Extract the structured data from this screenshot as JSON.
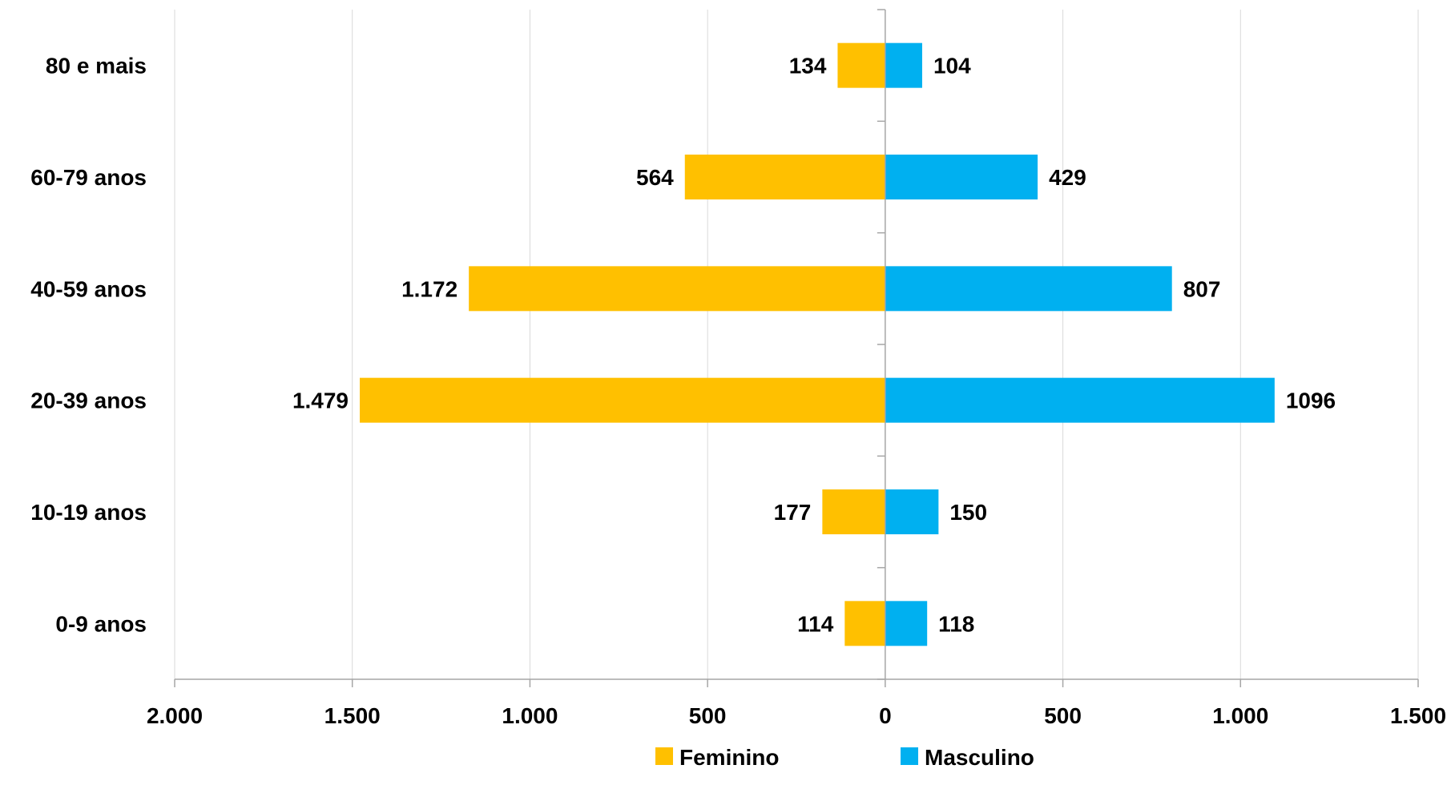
{
  "chart_data": {
    "type": "bar",
    "orientation": "horizontal",
    "layout": "population-pyramid",
    "title": "",
    "xlabel": "",
    "ylabel": "",
    "categories": [
      "0-9 anos",
      "10-19 anos",
      "20-39 anos",
      "40-59 anos",
      "60-79 anos",
      "80 e mais"
    ],
    "series": [
      {
        "name": "Feminino",
        "direction": "left",
        "color": "#FFC000",
        "values": [
          114,
          177,
          1479,
          1172,
          564,
          134
        ],
        "labels": [
          "114",
          "177",
          "1.479",
          "1.172",
          "564",
          "134"
        ]
      },
      {
        "name": "Masculino",
        "direction": "right",
        "color": "#00B0F0",
        "values": [
          118,
          150,
          1096,
          807,
          429,
          104
        ],
        "labels": [
          "118",
          "150",
          "1096",
          "807",
          "429",
          "104"
        ]
      }
    ],
    "xlim": [
      -2000,
      1500
    ],
    "x_ticks": [
      -2000,
      -1500,
      -1000,
      -500,
      0,
      500,
      1000,
      1500
    ],
    "x_tick_labels": [
      "2.000",
      "1.500",
      "1.000",
      "500",
      "0",
      "500",
      "1.000",
      "1.500"
    ],
    "grid": true,
    "legend_position": "bottom-center"
  }
}
